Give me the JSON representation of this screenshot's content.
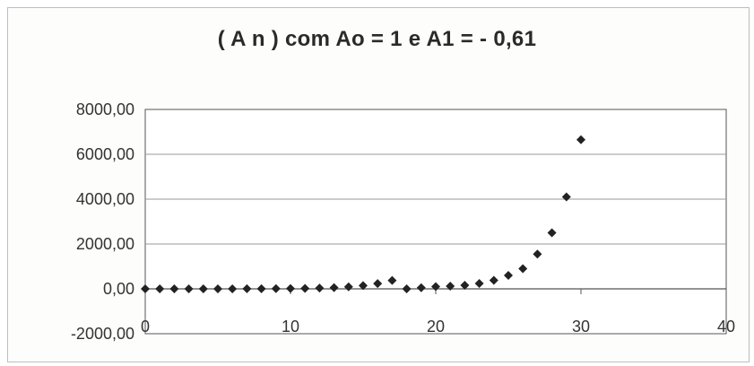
{
  "chart_data": {
    "type": "scatter",
    "title": "( A n ) com Ao = 1 e A1 = - 0,61",
    "xlabel": "",
    "ylabel": "",
    "xlim": [
      0,
      40
    ],
    "ylim": [
      -2000,
      8000
    ],
    "x_ticks": [
      "0",
      "10",
      "20",
      "30",
      "40"
    ],
    "y_ticks": [
      "8000,00",
      "6000,00",
      "4000,00",
      "2000,00",
      "0,00",
      "-2000,00"
    ],
    "grid": "horizontal",
    "legend": "none",
    "marker": "diamond",
    "colors": {
      "marker": "#222222",
      "grid": "#9a9a9a",
      "axis": "#555555"
    },
    "series": [
      {
        "x": [
          0,
          1,
          2,
          3,
          4,
          5,
          6,
          7,
          8,
          9,
          10,
          11,
          12,
          13,
          14,
          15,
          16,
          17,
          18,
          19,
          20,
          21,
          22,
          23,
          24,
          25,
          26,
          27,
          28,
          29,
          30
        ],
        "y": [
          1,
          -0.61,
          1,
          0,
          1,
          1,
          2,
          3,
          5,
          8,
          13,
          21,
          34,
          55,
          89,
          144,
          233,
          377,
          0,
          50,
          100,
          120,
          160,
          240,
          380,
          600,
          900,
          1550,
          2500,
          4100,
          6650
        ]
      }
    ]
  }
}
